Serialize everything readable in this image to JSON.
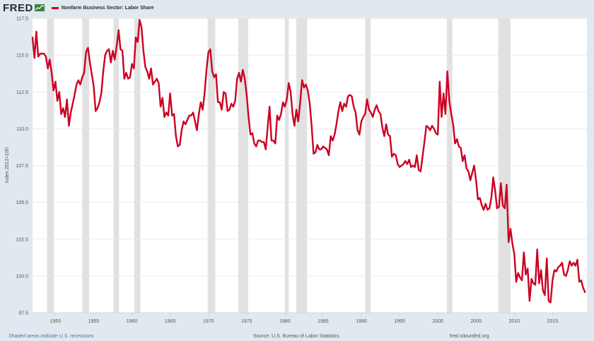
{
  "header": {
    "logo_text": "FRED",
    "legend_label": "Nonfarm Business Sector: Labor Share",
    "series_color": "#cc0021"
  },
  "footer": {
    "recession_note": "Shaded areas indicate U.S. recessions",
    "source": "Source: U.S. Bureau of Labor Statistics",
    "site": "fred.stlouisfed.org"
  },
  "chart_data": {
    "type": "line",
    "title": "",
    "xlabel": "",
    "ylabel": "Index 2012=100",
    "xlim": [
      1947.0,
      2019.5
    ],
    "ylim": [
      97.5,
      117.5
    ],
    "x_ticks": [
      1950,
      1955,
      1960,
      1965,
      1970,
      1975,
      1980,
      1985,
      1990,
      1995,
      2000,
      2005,
      2010,
      2015
    ],
    "y_ticks": [
      97.5,
      100.0,
      102.5,
      105.0,
      107.5,
      110.0,
      112.5,
      115.0,
      117.5
    ],
    "grid": true,
    "legend": "top-left",
    "recessions": [
      [
        1948.9,
        1949.8
      ],
      [
        1953.5,
        1954.4
      ],
      [
        1957.6,
        1958.3
      ],
      [
        1960.3,
        1961.1
      ],
      [
        1969.9,
        1970.9
      ],
      [
        1973.9,
        1975.2
      ],
      [
        1980.0,
        1980.5
      ],
      [
        1981.5,
        1982.9
      ],
      [
        1990.5,
        1991.2
      ],
      [
        2001.2,
        2001.9
      ],
      [
        2007.9,
        2009.5
      ]
    ],
    "series": [
      {
        "name": "Nonfarm Business Sector: Labor Share",
        "x": [
          1947.0,
          1947.25,
          1947.5,
          1947.75,
          1948.0,
          1948.25,
          1948.5,
          1948.75,
          1949.0,
          1949.25,
          1949.5,
          1949.75,
          1950.0,
          1950.25,
          1950.5,
          1950.75,
          1951.0,
          1951.25,
          1951.5,
          1951.75,
          1952.0,
          1952.25,
          1952.5,
          1952.75,
          1953.0,
          1953.25,
          1953.5,
          1953.75,
          1954.0,
          1954.25,
          1954.5,
          1954.75,
          1955.0,
          1955.25,
          1955.5,
          1955.75,
          1956.0,
          1956.25,
          1956.5,
          1956.75,
          1957.0,
          1957.25,
          1957.5,
          1957.75,
          1958.0,
          1958.25,
          1958.5,
          1958.75,
          1959.0,
          1959.25,
          1959.5,
          1959.75,
          1960.0,
          1960.25,
          1960.5,
          1960.75,
          1961.0,
          1961.25,
          1961.5,
          1961.75,
          1962.0,
          1962.25,
          1962.5,
          1962.75,
          1963.0,
          1963.25,
          1963.5,
          1963.75,
          1964.0,
          1964.25,
          1964.5,
          1964.75,
          1965.0,
          1965.25,
          1965.5,
          1965.75,
          1966.0,
          1966.25,
          1966.5,
          1966.75,
          1967.0,
          1967.25,
          1967.5,
          1967.75,
          1968.0,
          1968.25,
          1968.5,
          1968.75,
          1969.0,
          1969.25,
          1969.5,
          1969.75,
          1970.0,
          1970.25,
          1970.5,
          1970.75,
          1971.0,
          1971.25,
          1971.5,
          1971.75,
          1972.0,
          1972.25,
          1972.5,
          1972.75,
          1973.0,
          1973.25,
          1973.5,
          1973.75,
          1974.0,
          1974.25,
          1974.5,
          1974.75,
          1975.0,
          1975.25,
          1975.5,
          1975.75,
          1976.0,
          1976.25,
          1976.5,
          1976.75,
          1977.0,
          1977.25,
          1977.5,
          1977.75,
          1978.0,
          1978.25,
          1978.5,
          1978.75,
          1979.0,
          1979.25,
          1979.5,
          1979.75,
          1980.0,
          1980.25,
          1980.5,
          1980.75,
          1981.0,
          1981.25,
          1981.5,
          1981.75,
          1982.0,
          1982.25,
          1982.5,
          1982.75,
          1983.0,
          1983.25,
          1983.5,
          1983.75,
          1984.0,
          1984.25,
          1984.5,
          1984.75,
          1985.0,
          1985.25,
          1985.5,
          1985.75,
          1986.0,
          1986.25,
          1986.5,
          1986.75,
          1987.0,
          1987.25,
          1987.5,
          1987.75,
          1988.0,
          1988.25,
          1988.5,
          1988.75,
          1989.0,
          1989.25,
          1989.5,
          1989.75,
          1990.0,
          1990.25,
          1990.5,
          1990.75,
          1991.0,
          1991.25,
          1991.5,
          1991.75,
          1992.0,
          1992.25,
          1992.5,
          1992.75,
          1993.0,
          1993.25,
          1993.5,
          1993.75,
          1994.0,
          1994.25,
          1994.5,
          1994.75,
          1995.0,
          1995.25,
          1995.5,
          1995.75,
          1996.0,
          1996.25,
          1996.5,
          1996.75,
          1997.0,
          1997.25,
          1997.5,
          1997.75,
          1998.0,
          1998.25,
          1998.5,
          1998.75,
          1999.0,
          1999.25,
          1999.5,
          1999.75,
          2000.0,
          2000.25,
          2000.5,
          2000.75,
          2001.0,
          2001.25,
          2001.5,
          2001.75,
          2002.0,
          2002.25,
          2002.5,
          2002.75,
          2003.0,
          2003.25,
          2003.5,
          2003.75,
          2004.0,
          2004.25,
          2004.5,
          2004.75,
          2005.0,
          2005.25,
          2005.5,
          2005.75,
          2006.0,
          2006.25,
          2006.5,
          2006.75,
          2007.0,
          2007.25,
          2007.5,
          2007.75,
          2008.0,
          2008.25,
          2008.5,
          2008.75,
          2009.0,
          2009.25,
          2009.5,
          2009.75,
          2010.0,
          2010.25,
          2010.5,
          2010.75,
          2011.0,
          2011.25,
          2011.5,
          2011.75,
          2012.0,
          2012.25,
          2012.5,
          2012.75,
          2013.0,
          2013.25,
          2013.5,
          2013.75,
          2014.0,
          2014.25,
          2014.5,
          2014.75,
          2015.0,
          2015.25,
          2015.5,
          2015.75,
          2016.0,
          2016.25,
          2016.5,
          2016.75,
          2017.0,
          2017.25,
          2017.5,
          2017.75,
          2018.0,
          2018.25,
          2018.5,
          2018.75,
          2019.0,
          2019.25
        ],
        "values": [
          116.2,
          114.8,
          116.6,
          114.9,
          115.1,
          115.1,
          115.1,
          114.9,
          114.1,
          114.7,
          113.8,
          112.6,
          113.2,
          111.9,
          112.5,
          111.0,
          111.4,
          110.8,
          112.0,
          110.2,
          111.1,
          111.7,
          112.3,
          113.0,
          113.3,
          113.0,
          113.5,
          113.8,
          115.2,
          115.5,
          114.5,
          113.7,
          112.9,
          111.2,
          111.4,
          111.8,
          112.4,
          113.9,
          115.0,
          115.3,
          115.4,
          114.5,
          115.3,
          114.7,
          115.6,
          116.7,
          115.4,
          115.3,
          113.4,
          113.8,
          113.4,
          113.5,
          114.4,
          114.1,
          116.2,
          115.9,
          117.4,
          116.9,
          115.3,
          114.2,
          113.9,
          113.4,
          114.1,
          113.0,
          113.2,
          113.4,
          113.1,
          111.5,
          112.1,
          110.8,
          111.1,
          110.9,
          112.4,
          110.9,
          111.0,
          109.5,
          108.8,
          108.9,
          109.9,
          110.5,
          110.3,
          110.6,
          110.9,
          110.9,
          111.1,
          110.5,
          109.9,
          111.0,
          111.8,
          111.3,
          112.4,
          114.0,
          115.2,
          115.4,
          113.9,
          113.5,
          113.7,
          111.8,
          111.8,
          111.3,
          112.5,
          112.4,
          111.2,
          111.3,
          111.7,
          111.5,
          111.9,
          113.4,
          113.8,
          113.2,
          114.0,
          113.4,
          112.3,
          110.8,
          109.6,
          109.7,
          109.0,
          108.8,
          109.2,
          109.2,
          109.1,
          109.1,
          108.6,
          110.1,
          111.5,
          109.2,
          109.2,
          109.0,
          110.9,
          110.6,
          111.0,
          111.8,
          111.5,
          112.0,
          113.1,
          112.5,
          111.0,
          110.2,
          111.3,
          110.5,
          111.8,
          113.3,
          112.8,
          113.0,
          112.6,
          111.7,
          110.2,
          108.3,
          108.4,
          108.9,
          108.6,
          108.6,
          108.8,
          108.7,
          108.6,
          108.2,
          109.5,
          109.2,
          109.6,
          110.3,
          111.2,
          111.8,
          111.2,
          111.7,
          111.5,
          112.2,
          112.3,
          112.2,
          111.5,
          111.1,
          109.9,
          109.6,
          110.5,
          110.8,
          111.0,
          112.0,
          111.3,
          111.1,
          110.8,
          111.3,
          111.6,
          111.2,
          111.0,
          110.1,
          109.5,
          110.3,
          109.6,
          109.5,
          108.1,
          108.3,
          108.2,
          107.6,
          107.4,
          107.5,
          107.6,
          107.8,
          107.6,
          107.9,
          107.4,
          107.5,
          107.4,
          108.2,
          107.2,
          107.1,
          108.1,
          109.1,
          110.2,
          110.1,
          109.9,
          110.2,
          110.0,
          109.7,
          109.6,
          113.2,
          110.8,
          112.4,
          111.0,
          113.9,
          111.9,
          111.0,
          110.3,
          109.0,
          109.3,
          108.8,
          108.7,
          107.8,
          108.2,
          107.3,
          107.1,
          106.5,
          107.0,
          107.5,
          106.5,
          105.2,
          105.3,
          104.8,
          104.5,
          104.9,
          104.5,
          104.6,
          105.3,
          106.7,
          105.8,
          104.6,
          104.7,
          106.3,
          104.8,
          104.6,
          106.2,
          102.3,
          103.2,
          102.2,
          101.5,
          99.6,
          100.2,
          99.9,
          99.7,
          101.6,
          100.1,
          100.5,
          98.3,
          99.8,
          99.5,
          99.4,
          101.8,
          99.5,
          100.4,
          99.0,
          98.7,
          101.2,
          98.3,
          98.2,
          99.7,
          100.4,
          100.3,
          100.6,
          100.7,
          100.9,
          100.1,
          100.0,
          100.4,
          101.0,
          100.7,
          100.9,
          100.7,
          101.1,
          99.6,
          99.7,
          99.2,
          98.9
        ]
      }
    ]
  }
}
